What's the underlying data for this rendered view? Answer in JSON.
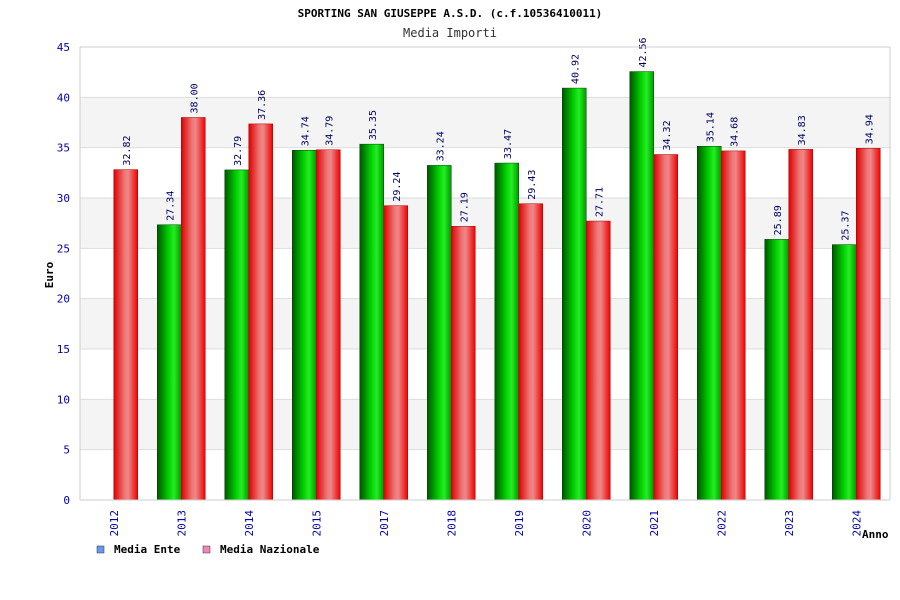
{
  "chart_data": {
    "type": "bar",
    "title": "SPORTING SAN GIUSEPPE A.S.D. (c.f.10536410011)",
    "subtitle": "Media Importi",
    "ylabel": "Euro",
    "xlabel": "Anno",
    "ylim": [
      0,
      45
    ],
    "yticks": [
      "0",
      "5",
      "10",
      "15",
      "20",
      "25",
      "30",
      "35",
      "40",
      "45"
    ],
    "categories": [
      "2012",
      "2013",
      "2014",
      "2015",
      "2017",
      "2018",
      "2019",
      "2020",
      "2021",
      "2022",
      "2023",
      "2024"
    ],
    "series": [
      {
        "name": "Media Ente",
        "color": "#00bb00",
        "values": [
          null,
          27.34,
          32.79,
          34.74,
          35.35,
          33.24,
          33.47,
          40.92,
          42.56,
          35.14,
          25.89,
          25.37
        ],
        "labels": [
          null,
          "27.34",
          "32.79",
          "34.74",
          "35.35",
          "33.24",
          "33.47",
          "40.92",
          "42.56",
          "35.14",
          "25.89",
          "25.37"
        ]
      },
      {
        "name": "Media Nazionale",
        "color": "#ee0000",
        "values": [
          32.82,
          38.0,
          37.36,
          34.79,
          29.24,
          27.19,
          29.43,
          27.71,
          34.32,
          34.68,
          34.83,
          34.94
        ],
        "labels": [
          "32.82",
          "38.00",
          "37.36",
          "34.79",
          "29.24",
          "27.19",
          "29.43",
          "27.71",
          "34.32",
          "34.68",
          "34.83",
          "34.94"
        ]
      }
    ],
    "legend": [
      {
        "label": "Media Ente",
        "swatch": "#6699ee"
      },
      {
        "label": "Media Nazionale",
        "swatch": "#ee88bb"
      }
    ],
    "legend_position": "bottom-left",
    "grid": true
  }
}
